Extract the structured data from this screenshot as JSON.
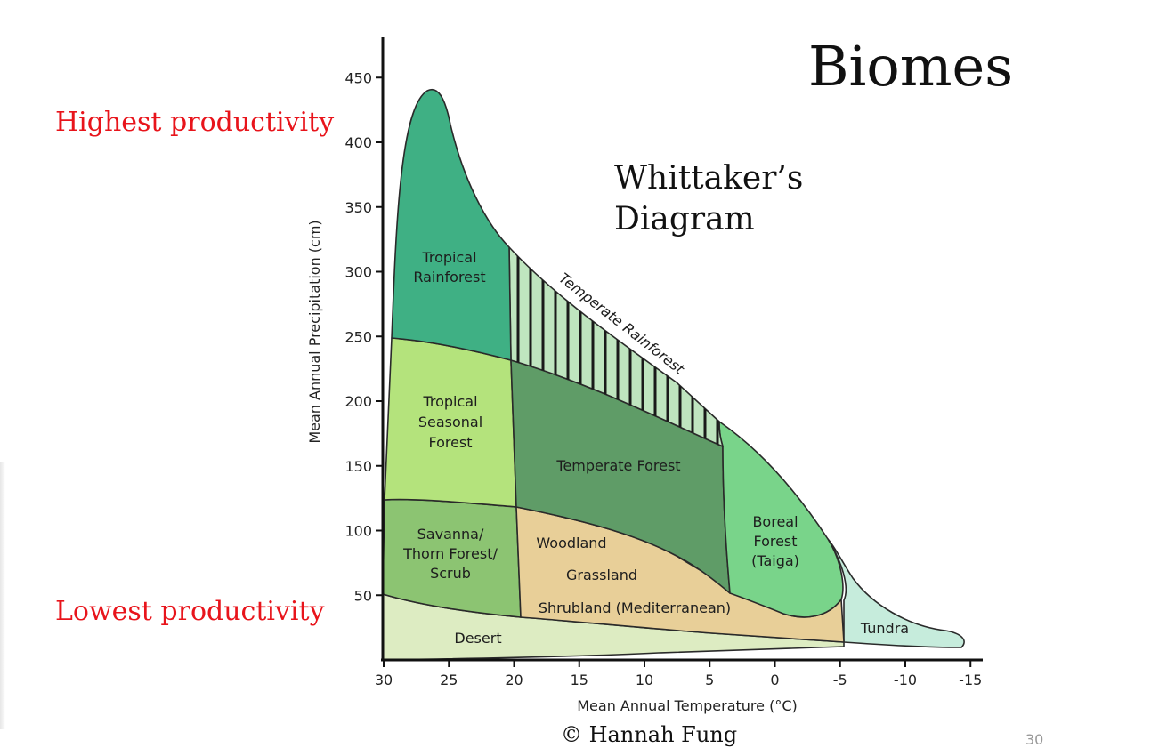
{
  "slide": {
    "title": "Biomes",
    "subtitle_line1": "Whittaker’s",
    "subtitle_line2": "Diagram",
    "highest_label": "Highest productivity",
    "lowest_label": "Lowest productivity",
    "credit": "© Hannah Fung",
    "page_number": "30"
  },
  "colors": {
    "highlight_text": "#e8141b",
    "tropical_rainforest": "#3fb084",
    "tropical_seasonal_forest": "#b4e37c",
    "temperate_rainforest": "#bfe5bf",
    "temperate_forest": "#5f9c67",
    "boreal_forest": "#79d48a",
    "savanna": "#8cc472",
    "woodland_grassland": "#e8cf98",
    "desert": "#ddecc2",
    "tundra": "#c6ecdc"
  },
  "chart_data": {
    "type": "diagram",
    "xlabel": "Mean Annual Temperature (°C)",
    "ylabel": "Mean Annual Precipitation (cm)",
    "xlim": [
      30,
      -15
    ],
    "ylim": [
      0,
      450
    ],
    "x_axis_reversed": true,
    "x_ticks": [
      30,
      25,
      20,
      15,
      10,
      5,
      0,
      -5,
      -10,
      -15
    ],
    "x_tick_labels": [
      "30",
      "25",
      "20",
      "15",
      "10",
      "5",
      "0",
      "-5",
      "-10",
      "-15"
    ],
    "y_ticks": [
      50,
      100,
      150,
      200,
      250,
      300,
      350,
      400,
      450
    ],
    "y_tick_labels": [
      "50",
      "100",
      "150",
      "200",
      "250",
      "300",
      "350",
      "400",
      "450"
    ],
    "regions": [
      {
        "key": "tropical_rainforest",
        "label_lines": [
          "Tropical",
          "Rainforest"
        ]
      },
      {
        "key": "temperate_rainforest",
        "label_lines": [
          "Temperate Rainforest"
        ]
      },
      {
        "key": "tropical_seasonal_forest",
        "label_lines": [
          "Tropical",
          "Seasonal",
          "Forest"
        ]
      },
      {
        "key": "temperate_forest",
        "label_lines": [
          "Temperate Forest"
        ]
      },
      {
        "key": "boreal_forest",
        "label_lines": [
          "Boreal",
          "Forest",
          "(Taiga)"
        ]
      },
      {
        "key": "savanna",
        "label_lines": [
          "Savanna/",
          "Thorn Forest/",
          "Scrub"
        ]
      },
      {
        "key": "woodland",
        "label_lines": [
          "Woodland"
        ]
      },
      {
        "key": "grassland",
        "label_lines": [
          "Grassland"
        ]
      },
      {
        "key": "shrubland",
        "label_lines": [
          "Shrubland (Mediterranean)"
        ]
      },
      {
        "key": "desert",
        "label_lines": [
          "Desert"
        ]
      },
      {
        "key": "tundra",
        "label_lines": [
          "Tundra"
        ]
      }
    ]
  }
}
